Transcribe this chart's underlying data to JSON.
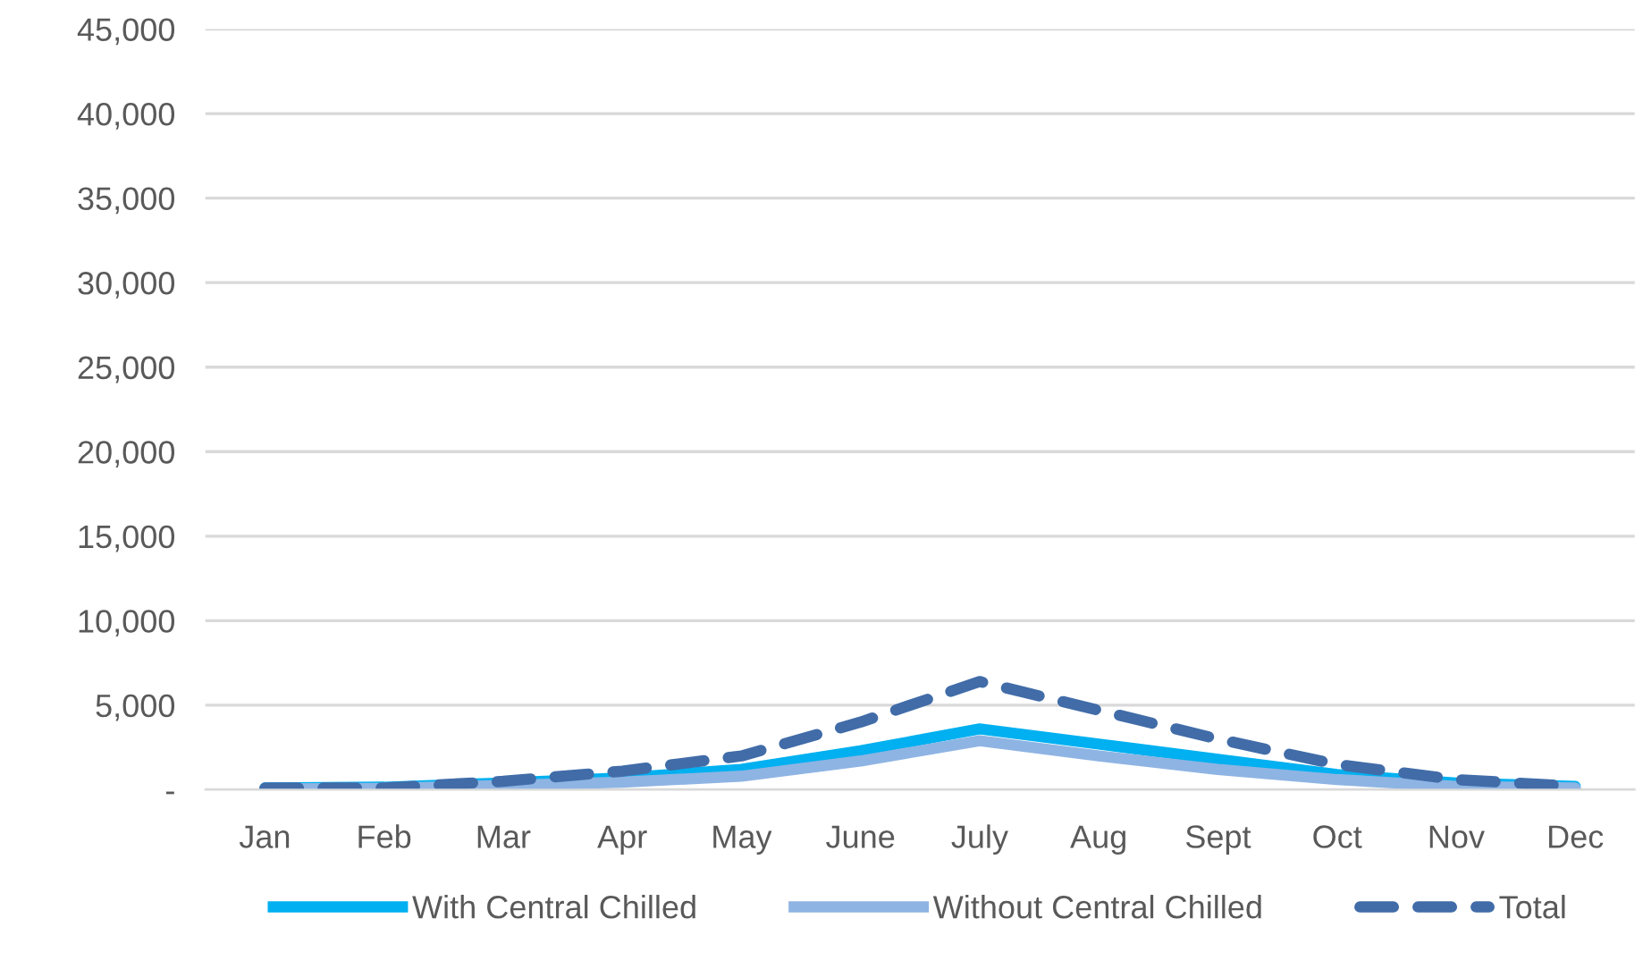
{
  "chart_data": {
    "type": "line",
    "categories": [
      "Jan",
      "Feb",
      "Mar",
      "Apr",
      "May",
      "June",
      "July",
      "Aug",
      "Sept",
      "Oct",
      "Nov",
      "Dec"
    ],
    "series": [
      {
        "name": "With Central Chilled",
        "color": "#00b0f0",
        "line_style": "solid",
        "values": [
          100,
          150,
          400,
          700,
          1200,
          2300,
          3600,
          2700,
          1800,
          900,
          400,
          200
        ]
      },
      {
        "name": "Without Central Chilled",
        "color": "#8eb4e3",
        "line_style": "solid",
        "values": [
          50,
          80,
          250,
          450,
          800,
          1700,
          2900,
          2000,
          1200,
          600,
          200,
          100
        ]
      },
      {
        "name": "Total",
        "color": "#416ca8",
        "line_style": "dashed",
        "values": [
          100,
          100,
          500,
          1100,
          2000,
          4000,
          6400,
          4700,
          3000,
          1500,
          600,
          200
        ]
      }
    ],
    "ylim": [
      0,
      45000
    ],
    "yticks": [
      {
        "value": 0,
        "label": "-"
      },
      {
        "value": 5000,
        "label": "5,000"
      },
      {
        "value": 10000,
        "label": "10,000"
      },
      {
        "value": 15000,
        "label": "15,000"
      },
      {
        "value": 20000,
        "label": "20,000"
      },
      {
        "value": 25000,
        "label": "25,000"
      },
      {
        "value": 30000,
        "label": "30,000"
      },
      {
        "value": 35000,
        "label": "35,000"
      },
      {
        "value": 40000,
        "label": "40,000"
      },
      {
        "value": 45000,
        "label": "45,000"
      }
    ],
    "grid": "y",
    "legend": "bottom",
    "marker": "none"
  }
}
